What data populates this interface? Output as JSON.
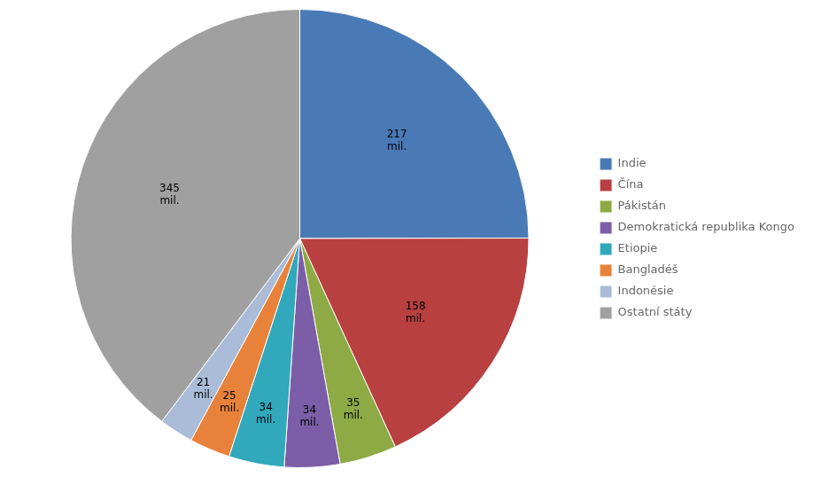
{
  "chart_data": {
    "type": "pie",
    "categories": [
      "Indie",
      "Čína",
      "Pákistán",
      "Demokratická republika Kongo",
      "Etiopie",
      "Bangladéš",
      "Indonésie",
      "Ostatní státy"
    ],
    "values": [
      217,
      158,
      35,
      34,
      34,
      25,
      21,
      345
    ],
    "value_labels": [
      "217\nmil.",
      "158\nmil.",
      "35\nmil.",
      "34\nmil.",
      "34\nmil.",
      "25\nmil.",
      "21\nmil.",
      "345\nmil."
    ],
    "colors": [
      "#4a7ab5",
      "#b94040",
      "#8eaa44",
      "#7b5ea7",
      "#31a8bb",
      "#e8823a",
      "#aabcd8",
      "#a0a0a0"
    ],
    "data_labels": true,
    "legend": "right"
  }
}
